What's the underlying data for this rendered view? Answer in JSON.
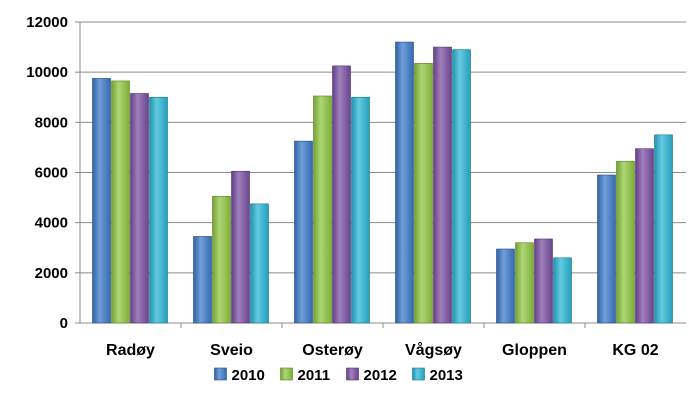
{
  "chart_data": {
    "type": "bar",
    "categories": [
      "Radøy",
      "Sveio",
      "Osterøy",
      "Vågsøy",
      "Gloppen",
      "KG 02"
    ],
    "series": [
      {
        "name": "2010",
        "color": "#3a78c9",
        "values": [
          9750,
          3450,
          7250,
          11200,
          2950,
          5900
        ]
      },
      {
        "name": "2011",
        "color": "#8ec63f",
        "values": [
          9650,
          5050,
          9050,
          10350,
          3200,
          6450
        ]
      },
      {
        "name": "2012",
        "color": "#7a4ea3",
        "values": [
          9150,
          6050,
          10250,
          11000,
          3350,
          6950
        ]
      },
      {
        "name": "2013",
        "color": "#28b5d6",
        "values": [
          9000,
          4750,
          9000,
          10900,
          2600,
          7500
        ]
      }
    ],
    "ylim": [
      0,
      12000
    ],
    "yticks": [
      0,
      2000,
      4000,
      6000,
      8000,
      10000,
      12000
    ],
    "grid": true,
    "legend_position": "bottom",
    "xlabel": "",
    "ylabel": "",
    "title": ""
  }
}
